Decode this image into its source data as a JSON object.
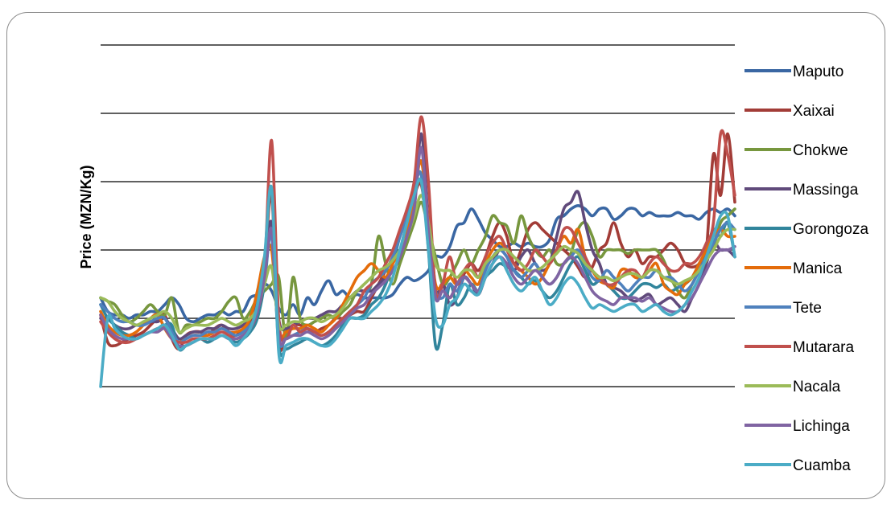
{
  "chart_data": {
    "type": "line",
    "title": "",
    "xlabel": "",
    "ylabel": "Price (MZN/Kg)",
    "ylim": [
      0,
      5
    ],
    "y_gridlines": [
      0,
      1,
      2,
      3,
      4,
      5
    ],
    "y_tick_labels_shown": false,
    "x_tick_labels_shown": false,
    "grid": "horizontal",
    "legend_position": "right",
    "series": [
      {
        "name": "Maputo",
        "color": "#3a67a3",
        "values": [
          1.3,
          1.1,
          1.05,
          1.05,
          1.0,
          1.05,
          1.05,
          1.1,
          1.1,
          1.2,
          1.3,
          1.2,
          1.0,
          0.95,
          1.0,
          1.05,
          1.05,
          1.1,
          1.05,
          1.1,
          1.1,
          1.3,
          1.35,
          1.5,
          1.4,
          1.15,
          1.05,
          1.2,
          1.05,
          1.3,
          1.2,
          1.4,
          1.55,
          1.35,
          1.4,
          1.3,
          1.35,
          1.3,
          1.3,
          1.3,
          1.3,
          1.35,
          1.5,
          1.6,
          1.55,
          1.6,
          1.7,
          1.9,
          1.9,
          2.05,
          2.35,
          2.4,
          2.6,
          2.45,
          2.25,
          2.15,
          2.05,
          2.05,
          2.1,
          2.05,
          2.1,
          2.05,
          2.05,
          2.15,
          2.45,
          2.5,
          2.6,
          2.65,
          2.6,
          2.5,
          2.6,
          2.6,
          2.45,
          2.5,
          2.6,
          2.6,
          2.5,
          2.55,
          2.5,
          2.5,
          2.5,
          2.55,
          2.5,
          2.5,
          2.45,
          2.55,
          2.6,
          2.55,
          2.6,
          2.5
        ]
      },
      {
        "name": "Xaixai",
        "color": "#a23c37",
        "values": [
          1.05,
          0.65,
          0.6,
          0.65,
          0.7,
          0.75,
          0.8,
          0.9,
          1.0,
          1.05,
          0.7,
          0.55,
          0.75,
          0.8,
          0.8,
          0.75,
          0.85,
          0.9,
          0.8,
          0.75,
          0.85,
          0.95,
          1.3,
          1.8,
          2.8,
          0.65,
          0.8,
          0.9,
          0.9,
          0.85,
          0.8,
          0.85,
          0.9,
          1.0,
          1.0,
          1.05,
          1.1,
          1.1,
          1.3,
          1.5,
          1.7,
          1.9,
          2.2,
          2.5,
          2.8,
          2.95,
          2.2,
          1.4,
          1.5,
          1.3,
          1.5,
          1.65,
          1.8,
          1.7,
          1.9,
          2.2,
          2.4,
          2.2,
          1.8,
          2.0,
          2.3,
          2.4,
          2.3,
          2.2,
          2.1,
          2.0,
          1.9,
          1.75,
          1.6,
          1.75,
          2.0,
          2.1,
          2.4,
          2.1,
          1.9,
          2.0,
          1.8,
          1.9,
          1.9,
          2.0,
          2.1,
          2.0,
          1.8,
          1.75,
          1.8,
          2.0,
          3.4,
          2.8,
          3.7,
          2.7
        ]
      },
      {
        "name": "Chokwe",
        "color": "#77973e",
        "values": [
          1.3,
          1.25,
          1.2,
          1.05,
          0.95,
          1.0,
          1.1,
          1.2,
          1.1,
          1.05,
          1.3,
          0.8,
          0.9,
          0.9,
          0.95,
          1.0,
          1.0,
          1.1,
          1.25,
          1.3,
          1.0,
          1.1,
          1.3,
          1.4,
          1.5,
          1.6,
          0.7,
          1.6,
          1.0,
          0.9,
          0.95,
          1.0,
          1.05,
          1.0,
          1.1,
          1.2,
          1.4,
          1.4,
          1.5,
          2.2,
          1.8,
          1.5,
          1.8,
          2.1,
          2.4,
          2.7,
          2.3,
          1.9,
          1.5,
          1.6,
          1.8,
          2.0,
          1.8,
          2.0,
          2.2,
          2.5,
          2.4,
          2.35,
          2.1,
          2.5,
          2.2,
          2.0,
          1.9,
          2.0,
          1.8,
          1.8,
          1.95,
          2.3,
          2.4,
          2.2,
          1.9,
          2.0,
          2.0,
          2.0,
          1.95,
          2.0,
          2.0,
          2.0,
          2.0,
          1.85,
          1.6,
          1.4,
          1.3,
          1.5,
          1.7,
          1.9,
          2.05,
          2.4,
          2.5,
          2.6
        ]
      },
      {
        "name": "Massinga",
        "color": "#604a7b",
        "values": [
          1.0,
          1.0,
          0.9,
          0.85,
          0.85,
          0.9,
          0.9,
          0.95,
          0.95,
          1.0,
          0.85,
          0.7,
          0.75,
          0.8,
          0.8,
          0.85,
          0.85,
          0.9,
          0.85,
          0.85,
          0.9,
          1.0,
          1.2,
          1.8,
          2.4,
          1.0,
          0.85,
          0.9,
          0.95,
          1.0,
          1.0,
          1.05,
          1.1,
          1.1,
          1.2,
          1.3,
          1.4,
          1.4,
          1.4,
          1.5,
          1.6,
          1.7,
          1.9,
          2.3,
          2.6,
          3.7,
          2.4,
          1.4,
          1.5,
          1.2,
          1.3,
          1.6,
          1.5,
          1.35,
          1.6,
          1.8,
          2.0,
          1.9,
          1.7,
          1.9,
          2.0,
          1.8,
          1.7,
          1.8,
          2.2,
          2.6,
          2.7,
          2.85,
          2.4,
          2.0,
          1.8,
          1.5,
          1.45,
          1.4,
          1.3,
          1.25,
          1.3,
          1.35,
          1.2,
          1.25,
          1.3,
          1.2,
          1.1,
          1.3,
          1.5,
          1.8,
          2.1,
          2.0,
          2.0,
          1.9
        ]
      },
      {
        "name": "Gorongoza",
        "color": "#31859c",
        "values": [
          1.2,
          1.0,
          0.9,
          0.8,
          0.75,
          0.7,
          0.75,
          0.8,
          0.85,
          0.9,
          0.9,
          0.55,
          0.6,
          0.65,
          0.7,
          0.65,
          0.7,
          0.75,
          0.7,
          0.65,
          0.7,
          0.8,
          1.0,
          1.5,
          2.3,
          0.6,
          0.55,
          0.6,
          0.65,
          0.7,
          0.65,
          0.6,
          0.65,
          0.75,
          0.9,
          1.0,
          1.0,
          1.05,
          1.2,
          1.3,
          1.5,
          1.8,
          2.2,
          2.5,
          2.9,
          3.1,
          2.0,
          0.6,
          0.9,
          1.5,
          1.2,
          1.3,
          1.5,
          1.4,
          1.6,
          1.7,
          1.8,
          1.75,
          1.7,
          1.6,
          1.5,
          1.55,
          1.4,
          1.3,
          1.4,
          1.6,
          1.8,
          1.9,
          1.7,
          1.5,
          1.55,
          1.5,
          1.4,
          1.3,
          1.3,
          1.4,
          1.5,
          1.5,
          1.45,
          1.5,
          1.4,
          1.45,
          1.5,
          1.6,
          1.8,
          2.0,
          2.3,
          2.2,
          2.4,
          1.9
        ]
      },
      {
        "name": "Manica",
        "color": "#e46c0a",
        "values": [
          1.1,
          0.9,
          0.8,
          0.75,
          0.75,
          0.8,
          0.9,
          1.0,
          1.05,
          0.85,
          0.7,
          0.65,
          0.7,
          0.75,
          0.75,
          0.75,
          0.8,
          0.85,
          0.8,
          0.8,
          0.85,
          1.0,
          1.4,
          1.9,
          2.0,
          0.8,
          0.8,
          0.85,
          0.85,
          0.9,
          0.85,
          0.8,
          0.9,
          1.0,
          1.2,
          1.4,
          1.6,
          1.7,
          1.8,
          1.7,
          1.6,
          1.8,
          2.0,
          2.3,
          2.8,
          3.3,
          2.4,
          1.5,
          1.5,
          1.6,
          1.5,
          1.7,
          1.6,
          1.5,
          1.8,
          2.0,
          2.1,
          2.0,
          1.8,
          1.7,
          1.6,
          1.5,
          1.6,
          1.8,
          2.0,
          2.2,
          2.1,
          2.3,
          1.9,
          1.7,
          1.55,
          1.5,
          1.45,
          1.7,
          1.7,
          1.6,
          1.6,
          1.7,
          1.8,
          1.5,
          1.4,
          1.35,
          1.5,
          1.6,
          1.8,
          2.0,
          2.2,
          2.3,
          2.2,
          2.2
        ]
      },
      {
        "name": "Tete",
        "color": "#4f81bd",
        "values": [
          1.2,
          1.1,
          1.0,
          0.95,
          0.95,
          0.9,
          0.9,
          0.95,
          1.0,
          1.0,
          0.8,
          0.65,
          0.7,
          0.75,
          0.75,
          0.8,
          0.8,
          0.85,
          0.8,
          0.75,
          0.8,
          0.9,
          1.1,
          1.6,
          2.2,
          0.7,
          0.7,
          0.75,
          0.8,
          0.85,
          0.8,
          0.75,
          0.8,
          0.9,
          1.0,
          1.1,
          1.2,
          1.3,
          1.5,
          1.6,
          1.7,
          1.9,
          2.2,
          2.5,
          2.9,
          3.1,
          2.1,
          1.4,
          1.3,
          1.5,
          1.4,
          1.6,
          1.5,
          1.4,
          1.7,
          1.9,
          2.0,
          1.9,
          1.7,
          1.6,
          1.7,
          1.8,
          1.6,
          1.5,
          1.6,
          1.8,
          1.9,
          2.0,
          1.8,
          1.6,
          1.55,
          1.7,
          1.6,
          1.5,
          1.4,
          1.5,
          1.6,
          1.6,
          1.7,
          1.6,
          1.6,
          1.5,
          1.4,
          1.5,
          1.7,
          1.9,
          2.1,
          2.3,
          2.4,
          2.3
        ]
      },
      {
        "name": "Mutarara",
        "color": "#c0504d",
        "values": [
          0.95,
          0.8,
          0.7,
          0.65,
          0.65,
          0.7,
          0.75,
          0.8,
          0.85,
          0.85,
          0.7,
          0.65,
          0.65,
          0.7,
          0.7,
          0.7,
          0.75,
          0.8,
          0.75,
          0.7,
          0.75,
          0.85,
          1.1,
          1.7,
          3.6,
          1.0,
          0.7,
          0.9,
          0.8,
          0.85,
          0.8,
          0.75,
          0.8,
          0.9,
          1.0,
          1.1,
          1.2,
          1.4,
          1.5,
          1.6,
          1.8,
          2.0,
          2.3,
          2.6,
          3.0,
          3.95,
          3.0,
          1.4,
          1.5,
          1.9,
          1.5,
          1.7,
          1.8,
          1.6,
          1.9,
          2.1,
          2.2,
          2.0,
          1.8,
          1.7,
          1.8,
          2.0,
          1.9,
          1.8,
          2.0,
          2.3,
          2.3,
          2.1,
          1.9,
          1.7,
          1.6,
          1.5,
          1.5,
          1.6,
          1.7,
          1.7,
          1.6,
          1.8,
          1.9,
          1.8,
          1.7,
          1.7,
          1.8,
          1.8,
          1.9,
          2.1,
          2.4,
          3.7,
          3.4,
          2.8
        ]
      },
      {
        "name": "Nacala",
        "color": "#9bbb59",
        "values": [
          1.3,
          1.25,
          1.1,
          1.0,
          0.95,
          0.9,
          0.95,
          1.0,
          1.05,
          1.1,
          1.0,
          0.8,
          0.85,
          0.9,
          0.9,
          0.9,
          0.95,
          1.0,
          0.95,
          0.9,
          0.95,
          1.0,
          1.15,
          1.5,
          1.75,
          0.9,
          0.9,
          0.95,
          0.95,
          1.0,
          1.0,
          0.95,
          1.0,
          1.05,
          1.15,
          1.3,
          1.4,
          1.5,
          1.6,
          1.7,
          1.75,
          1.85,
          2.0,
          2.2,
          2.5,
          2.8,
          2.4,
          1.8,
          1.7,
          1.7,
          1.6,
          1.7,
          1.7,
          1.6,
          1.8,
          1.9,
          2.0,
          2.0,
          1.9,
          1.8,
          1.7,
          1.7,
          1.75,
          1.85,
          1.95,
          2.05,
          2.0,
          1.95,
          1.8,
          1.7,
          1.6,
          1.6,
          1.55,
          1.6,
          1.65,
          1.65,
          1.6,
          1.7,
          1.7,
          1.6,
          1.55,
          1.5,
          1.55,
          1.6,
          1.7,
          1.85,
          2.0,
          2.2,
          2.3,
          2.3
        ]
      },
      {
        "name": "Lichinga",
        "color": "#8064a2",
        "values": [
          1.05,
          0.85,
          0.75,
          0.7,
          0.7,
          0.7,
          0.75,
          0.8,
          0.8,
          0.85,
          0.7,
          0.6,
          0.6,
          0.65,
          0.7,
          0.7,
          0.7,
          0.75,
          0.7,
          0.7,
          0.75,
          0.85,
          1.1,
          1.6,
          2.3,
          0.75,
          0.7,
          0.75,
          0.75,
          0.8,
          0.75,
          0.7,
          0.75,
          0.85,
          0.95,
          1.05,
          1.15,
          1.2,
          1.35,
          1.45,
          1.55,
          1.7,
          1.9,
          2.2,
          2.6,
          3.5,
          2.3,
          1.3,
          1.4,
          1.3,
          1.5,
          1.6,
          1.5,
          1.4,
          1.6,
          1.8,
          1.9,
          1.8,
          1.6,
          1.5,
          1.6,
          1.7,
          1.6,
          1.5,
          1.6,
          1.8,
          1.9,
          1.8,
          1.6,
          1.4,
          1.3,
          1.25,
          1.2,
          1.3,
          1.3,
          1.3,
          1.25,
          1.3,
          1.2,
          1.15,
          1.1,
          1.1,
          1.2,
          1.3,
          1.5,
          1.7,
          1.9,
          2.0,
          2.0,
          2.05
        ]
      },
      {
        "name": "Cuamba",
        "color": "#4bacc6",
        "values": [
          0.0,
          1.0,
          0.85,
          0.75,
          0.7,
          0.7,
          0.75,
          0.8,
          0.85,
          0.9,
          0.75,
          0.55,
          0.6,
          0.65,
          0.7,
          0.7,
          0.7,
          0.75,
          0.7,
          0.6,
          0.7,
          0.85,
          1.2,
          1.9,
          2.9,
          0.5,
          0.6,
          0.65,
          0.7,
          0.7,
          0.65,
          0.6,
          0.6,
          0.7,
          0.85,
          1.0,
          1.0,
          1.0,
          1.1,
          1.2,
          1.35,
          1.6,
          2.0,
          2.4,
          2.8,
          3.0,
          2.0,
          1.0,
          0.9,
          1.2,
          1.3,
          1.5,
          1.4,
          1.35,
          1.6,
          1.8,
          1.9,
          1.7,
          1.5,
          1.4,
          1.5,
          1.6,
          1.4,
          1.2,
          1.3,
          1.5,
          1.6,
          1.5,
          1.3,
          1.15,
          1.2,
          1.15,
          1.1,
          1.15,
          1.2,
          1.2,
          1.1,
          1.15,
          1.2,
          1.1,
          1.05,
          1.1,
          1.2,
          1.4,
          1.6,
          1.9,
          2.2,
          2.5,
          2.5,
          1.9
        ]
      }
    ]
  }
}
